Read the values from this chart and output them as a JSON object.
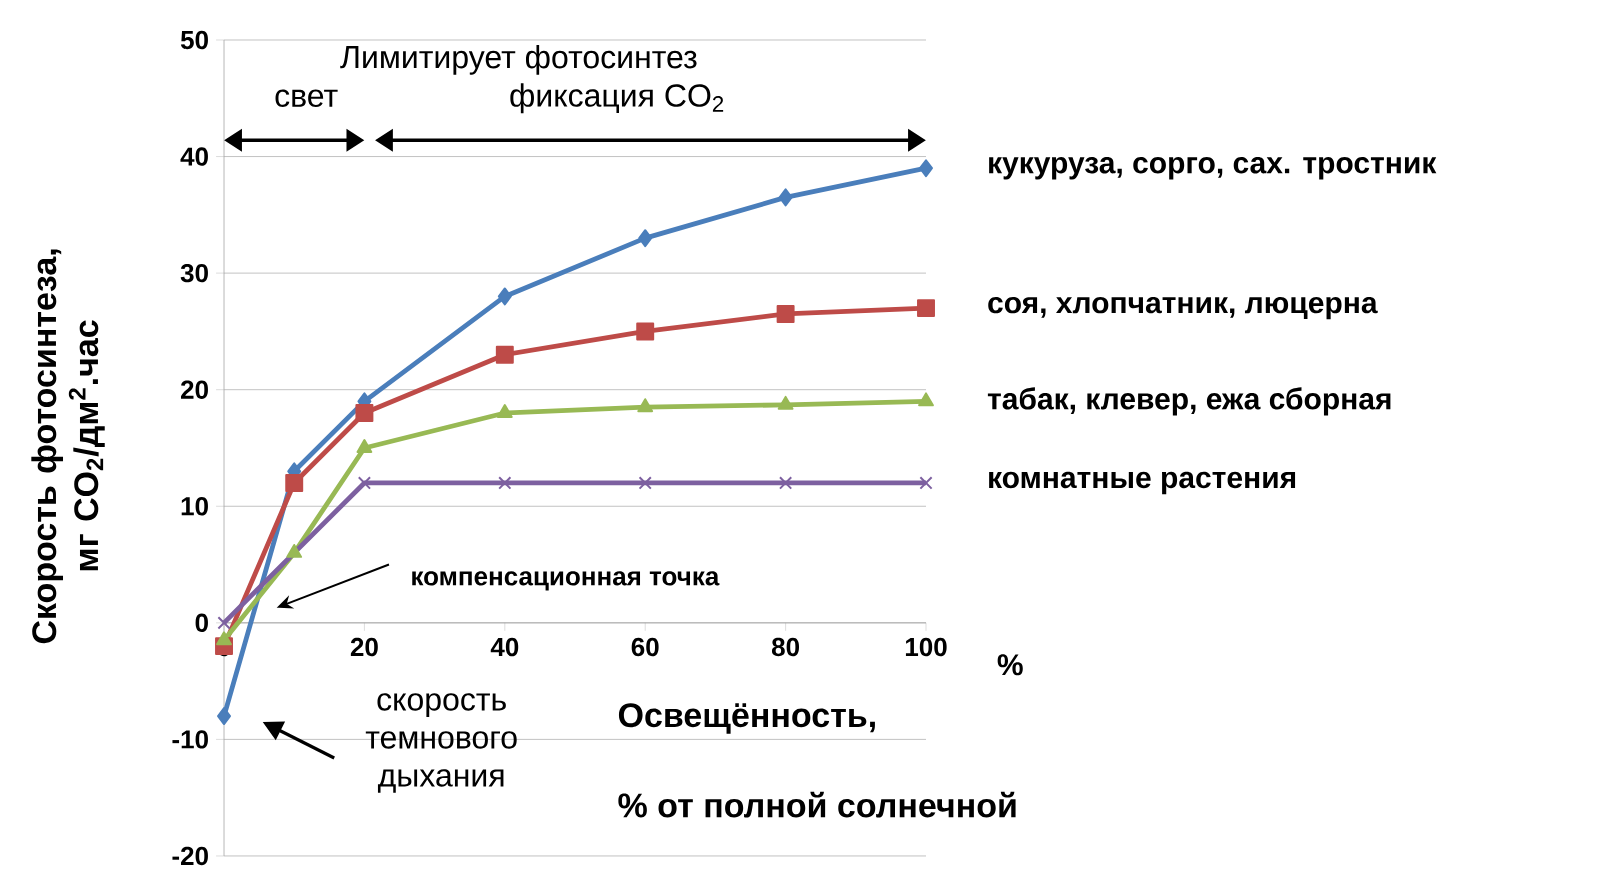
{
  "chart_data": {
    "type": "line",
    "xlabel": "Освещённость,",
    "ylabel": "Скорость фотосинтеза, мг CO$_{2}$/дм$^{2}$.час",
    "x": [
      0,
      10,
      20,
      40,
      60,
      80,
      100
    ],
    "series": [
      {
        "name": "кукуруза, сорго, сах. тростник",
        "color": "#4a7ebb",
        "marker": "diamond",
        "values": [
          -8,
          13,
          19,
          28,
          33,
          36.5,
          39
        ]
      },
      {
        "name": "соя, хлопчатник, люцерна",
        "color": "#be4b48",
        "marker": "square",
        "values": [
          -2,
          12,
          18,
          23,
          25,
          26.5,
          27
        ]
      },
      {
        "name": "табак, клевер, ежа сборная",
        "color": "#98b954",
        "marker": "triangle",
        "values": [
          -1.5,
          6,
          15,
          18,
          18.5,
          18.7,
          19
        ]
      },
      {
        "name": "комнатные растения",
        "color": "#7d60a0",
        "marker": "cross",
        "values": [
          0,
          null,
          12,
          12,
          12,
          12,
          12
        ]
      }
    ],
    "xlim": [
      0,
      100
    ],
    "xticks": [
      0,
      20,
      40,
      60,
      80,
      100
    ],
    "ylim": [
      -20,
      50
    ],
    "yticks": [
      -20,
      -10,
      0,
      10,
      20,
      30,
      40,
      50
    ],
    "grid": "y",
    "annotations": [
      "Лимитирует  фотосинтез",
      "свет",
      "фиксация  CO$_{2}$",
      "компенсационная точка",
      "скорость темнового дыхания",
      "% от полной солнечной",
      "%"
    ]
  }
}
